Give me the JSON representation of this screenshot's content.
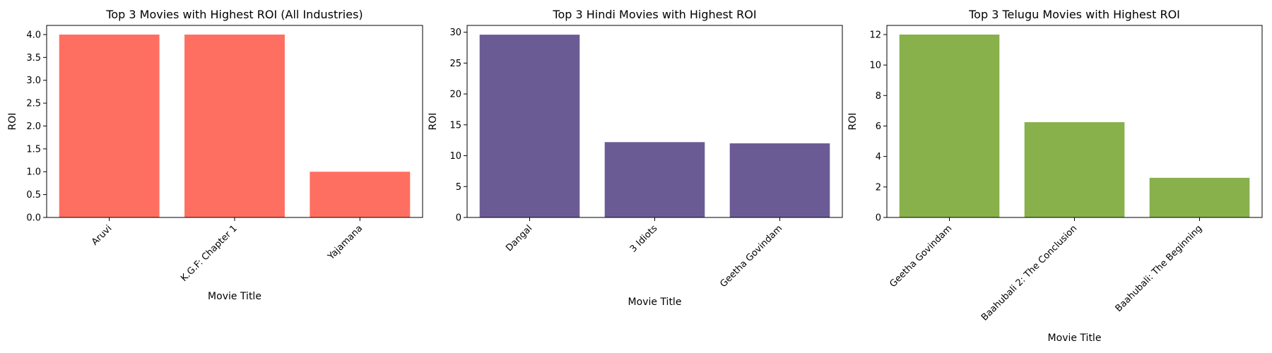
{
  "chart_data": [
    {
      "type": "bar",
      "title": "Top 3 Movies with Highest ROI (All Industries)",
      "xlabel": "Movie Title",
      "ylabel": "ROI",
      "categories": [
        "Aruvi",
        "K.G.F: Chapter 1",
        "Yajamana"
      ],
      "values": [
        4.0,
        4.0,
        1.0
      ],
      "ylim": [
        0,
        4.2
      ],
      "yticks": [
        0.0,
        0.5,
        1.0,
        1.5,
        2.0,
        2.5,
        3.0,
        3.5,
        4.0
      ],
      "ytick_decimals": 1,
      "color": "#ff6f61",
      "grid": false
    },
    {
      "type": "bar",
      "title": "Top 3 Hindi Movies with Highest ROI",
      "xlabel": "Movie Title",
      "ylabel": "ROI",
      "categories": [
        "Dangal",
        "3 Idiots",
        "Geetha Govindam"
      ],
      "values": [
        29.6,
        12.2,
        12.0
      ],
      "ylim": [
        0,
        31.1
      ],
      "yticks": [
        0,
        5,
        10,
        15,
        20,
        25,
        30
      ],
      "ytick_decimals": 0,
      "color": "#6b5b95",
      "grid": false
    },
    {
      "type": "bar",
      "title": "Top 3 Telugu Movies with Highest ROI",
      "xlabel": "Movie Title",
      "ylabel": "ROI",
      "categories": [
        "Geetha Govindam",
        "Baahubali 2: The Conclusion",
        "Baahubali: The Beginning"
      ],
      "values": [
        12.0,
        6.25,
        2.6
      ],
      "ylim": [
        0,
        12.6
      ],
      "yticks": [
        0,
        2,
        4,
        6,
        8,
        10,
        12
      ],
      "ytick_decimals": 0,
      "color": "#88b04b",
      "grid": false
    }
  ]
}
